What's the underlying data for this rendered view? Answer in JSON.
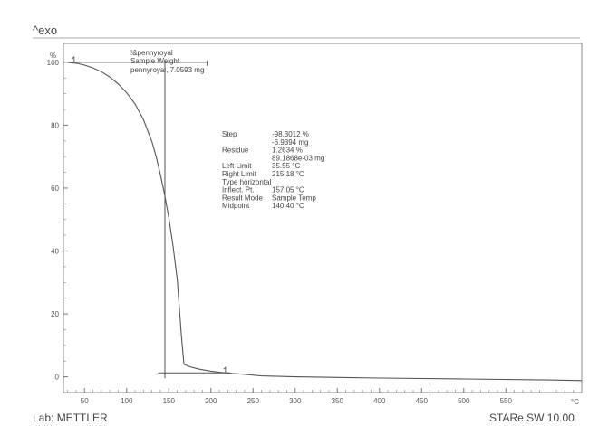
{
  "header": {
    "exo_label": "^exo"
  },
  "footer": {
    "lab": "Lab: METTLER",
    "software": "STARe SW 10.00"
  },
  "sample": {
    "line1": "!&pennyroyal",
    "line2": "Sample Weight",
    "line3": "pennyroyal, 7.0593 mg"
  },
  "results": [
    {
      "label": "Step",
      "value": "-98.3012 %"
    },
    {
      "label": "",
      "value": "-6.9394 mg"
    },
    {
      "label": "Residue",
      "value": "1.2634 %"
    },
    {
      "label": "",
      "value": "89.1868e-03 mg"
    },
    {
      "label": "Left Limit",
      "value": "35.55 °C"
    },
    {
      "label": "Right Limit",
      "value": "215.18 °C"
    },
    {
      "label": "Type horizontal",
      "value": ""
    },
    {
      "label": "Inflect. Pt.",
      "value": "157.05 °C"
    },
    {
      "label": "Result Mode",
      "value": "Sample Temp"
    },
    {
      "label": "Midpoint",
      "value": "140.40 °C"
    }
  ],
  "colors": {
    "line": "#555555",
    "frame": "#888888",
    "text": "#444444"
  },
  "chart_data": {
    "type": "line",
    "title": "",
    "xlabel": "°C",
    "ylabel": "%",
    "xlim": [
      25,
      640
    ],
    "ylim": [
      -5,
      106
    ],
    "x_ticks": [
      50,
      100,
      150,
      200,
      250,
      300,
      350,
      400,
      450,
      500,
      550
    ],
    "x_ticks_unit": "°C",
    "y_ticks": [
      0,
      20,
      40,
      60,
      80,
      100
    ],
    "y_unit": "%",
    "grid": false,
    "series": [
      {
        "name": "",
        "x": [
          30,
          40,
          50,
          60,
          70,
          80,
          90,
          100,
          110,
          120,
          130,
          135,
          140,
          145,
          150,
          155,
          160,
          165,
          168,
          175,
          185,
          200,
          215,
          235,
          260,
          300,
          400,
          500,
          600,
          640
        ],
        "y": [
          100,
          99.7,
          99.1,
          98.2,
          97,
          95.3,
          93.1,
          90.3,
          86.7,
          81.7,
          74.7,
          70,
          64.3,
          58,
          50.6,
          41.7,
          31,
          13,
          4,
          3.2,
          2.5,
          1.8,
          1.3,
          0.9,
          0.3,
          0,
          -0.4,
          -0.7,
          -1,
          -1.2
        ]
      }
    ],
    "annotations": {
      "left_limit": {
        "x": 35.55,
        "y": 100
      },
      "right_limit": {
        "x": 215.18,
        "y": 1.26
      },
      "inflection_x": 157.05,
      "midpoint_x": 140.4,
      "midpoint_y": 50.6
    }
  }
}
